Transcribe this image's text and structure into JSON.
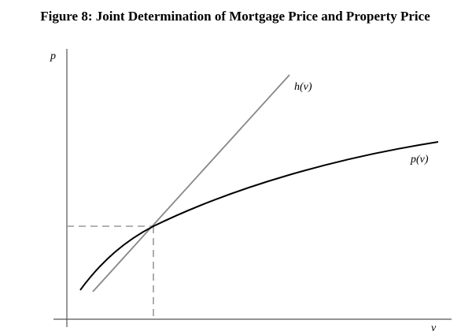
{
  "title": "Figure 8: Joint Determination of Mortgage Price and Property Price",
  "axes": {
    "y_label": "p",
    "x_label": "v"
  },
  "curves": [
    {
      "label": "h(v)"
    },
    {
      "label": "p(v)"
    }
  ]
}
